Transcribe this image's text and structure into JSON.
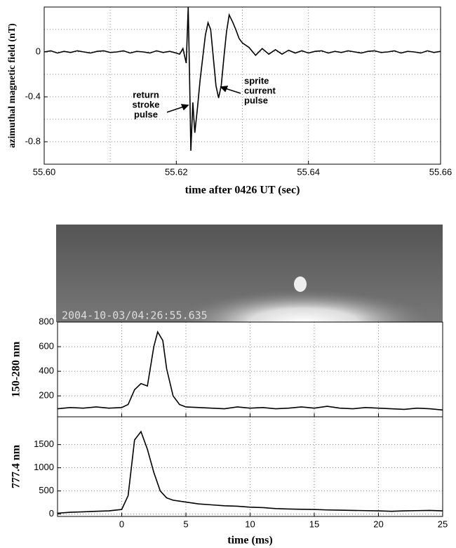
{
  "chart_data": [
    {
      "type": "line",
      "ylabel": "azimuthal magnetic field (nT)",
      "xlabel": "time after 0426 UT (sec)",
      "xlim": [
        55.6,
        55.66
      ],
      "xticks": [
        {
          "value": 55.6,
          "label": "55.60"
        },
        {
          "value": 55.62,
          "label": "55.62"
        },
        {
          "value": 55.64,
          "label": "55.64"
        },
        {
          "value": 55.66,
          "label": "55.66"
        }
      ],
      "xgrid_minor": [
        55.61,
        55.63,
        55.65
      ],
      "ylim": [
        -1.0,
        0.4
      ],
      "yticks": [
        0,
        -0.4,
        -0.8
      ],
      "ygrid_minor": [
        0.2,
        -0.2,
        -0.6
      ],
      "grid": true,
      "color": "#000000",
      "annotations": [
        {
          "lines": [
            "return",
            "stroke",
            "pulse"
          ]
        },
        {
          "lines": [
            "sprite",
            "current",
            "pulse"
          ]
        }
      ],
      "x": [
        55.6,
        55.601,
        55.602,
        55.603,
        55.604,
        55.605,
        55.606,
        55.607,
        55.608,
        55.609,
        55.61,
        55.611,
        55.612,
        55.613,
        55.614,
        55.615,
        55.616,
        55.617,
        55.618,
        55.619,
        55.62,
        55.6205,
        55.621,
        55.6215,
        55.6218,
        55.622,
        55.6222,
        55.6225,
        55.6228,
        55.6232,
        55.6236,
        55.624,
        55.6244,
        55.6248,
        55.6252,
        55.6256,
        55.626,
        55.6264,
        55.6268,
        55.6272,
        55.6276,
        55.628,
        55.6285,
        55.629,
        55.6295,
        55.63,
        55.631,
        55.632,
        55.633,
        55.634,
        55.635,
        55.636,
        55.637,
        55.638,
        55.639,
        55.64,
        55.641,
        55.642,
        55.643,
        55.644,
        55.645,
        55.646,
        55.647,
        55.648,
        55.649,
        55.65,
        55.651,
        55.652,
        55.653,
        55.654,
        55.655,
        55.656,
        55.657,
        55.658,
        55.659,
        55.66
      ],
      "values": [
        0,
        0.01,
        -0.01,
        0.005,
        -0.005,
        0.01,
        0,
        -0.01,
        0.005,
        0.01,
        -0.005,
        0,
        0.01,
        -0.01,
        0.005,
        0,
        -0.01,
        0.01,
        -0.005,
        0.005,
        -0.01,
        -0.02,
        0.03,
        -0.1,
        0.4,
        -0.2,
        -0.88,
        -0.45,
        -0.72,
        -0.5,
        -0.25,
        -0.05,
        0.15,
        0.26,
        0.2,
        -0.05,
        -0.3,
        -0.41,
        -0.3,
        -0.05,
        0.18,
        0.33,
        0.27,
        0.2,
        0.12,
        0.08,
        0.04,
        -0.03,
        0.03,
        -0.02,
        0.02,
        -0.02,
        0.015,
        -0.01,
        0.01,
        -0.01,
        0.005,
        0.01,
        -0.01,
        0.005,
        -0.005,
        0.01,
        0,
        -0.01,
        0.005,
        0.01,
        -0.005,
        0,
        0.01,
        -0.01,
        0.005,
        0,
        -0.01,
        0.01,
        -0.005,
        0.005
      ]
    },
    {
      "type": "line",
      "ylabel": "150-280 nm",
      "sharex": true,
      "ylim": [
        30,
        800
      ],
      "yticks": [
        200,
        400,
        600,
        800
      ],
      "grid": true,
      "color": "#000000",
      "x": [
        -5,
        -4,
        -3,
        -2,
        -1,
        0,
        0.5,
        1,
        1.5,
        2,
        2.5,
        2.8,
        3.2,
        3.5,
        4,
        4.5,
        5,
        6,
        7,
        8,
        9,
        10,
        11,
        12,
        13,
        14,
        15,
        16,
        17,
        18,
        19,
        20,
        21,
        22,
        23,
        24,
        25
      ],
      "values": [
        95,
        105,
        100,
        110,
        100,
        105,
        130,
        250,
        300,
        280,
        600,
        720,
        650,
        420,
        200,
        130,
        110,
        105,
        100,
        95,
        110,
        100,
        105,
        95,
        100,
        110,
        100,
        115,
        100,
        95,
        105,
        100,
        95,
        90,
        100,
        95,
        85
      ]
    },
    {
      "type": "line",
      "ylabel": "777.4 nm",
      "xlabel": "time (ms)",
      "xlim": [
        -5,
        25
      ],
      "xticks": [
        0,
        5,
        10,
        15,
        20,
        25
      ],
      "ylim": [
        -50,
        2100
      ],
      "yticks": [
        0,
        500,
        1000,
        1500
      ],
      "grid": true,
      "color": "#000000",
      "x": [
        -5,
        -4,
        -3,
        -2,
        -1,
        0,
        0.5,
        1,
        1.5,
        2,
        2.5,
        3,
        3.5,
        4,
        4.5,
        5,
        6,
        7,
        8,
        9,
        10,
        11,
        12,
        13,
        14,
        15,
        16,
        17,
        18,
        19,
        20,
        21,
        22,
        23,
        24,
        25
      ],
      "values": [
        20,
        40,
        50,
        60,
        70,
        100,
        400,
        1600,
        1780,
        1400,
        900,
        500,
        350,
        300,
        280,
        260,
        220,
        200,
        180,
        170,
        150,
        140,
        120,
        110,
        105,
        100,
        90,
        85,
        80,
        75,
        70,
        60,
        70,
        75,
        80,
        70
      ]
    }
  ],
  "image": {
    "timestamp": "2004-10-03/04:26:55.635"
  }
}
